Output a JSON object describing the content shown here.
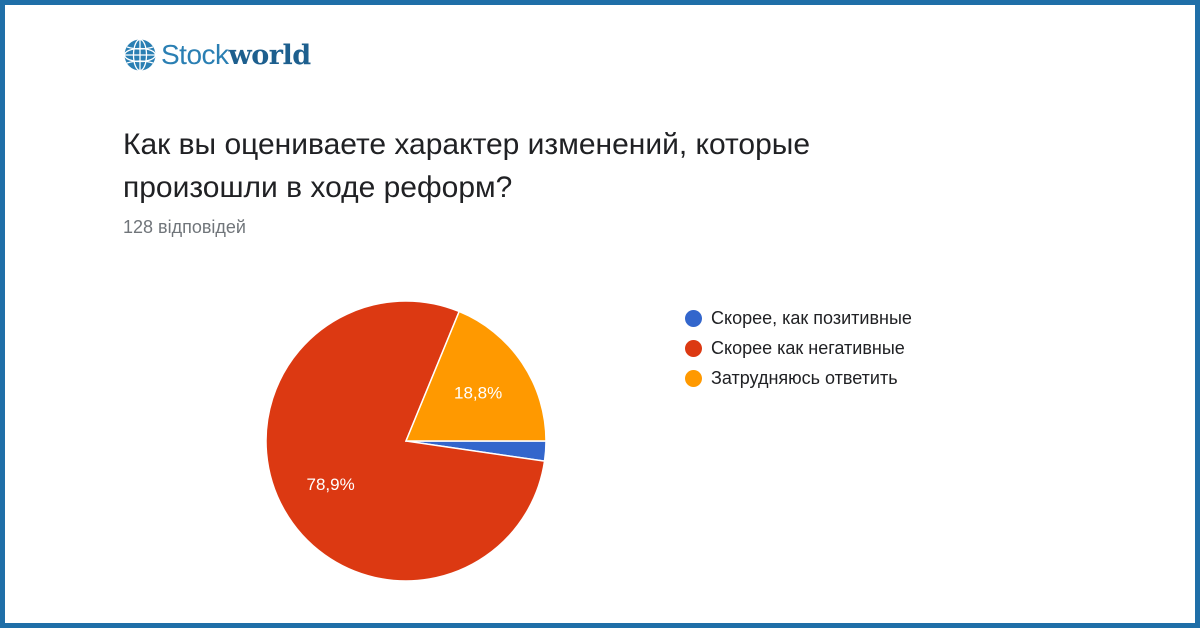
{
  "brand": {
    "name_light": "Stock",
    "name_bold": "world",
    "icon": "globe-icon",
    "color": "#2a7fb3"
  },
  "question": {
    "title": "Как вы оцениваете характер изменений, которые произошли в ходе реформ?",
    "responses": "128 відповідей"
  },
  "chart_data": {
    "type": "pie",
    "categories": [
      "Скорее, как позитивные",
      "Скорее как негативные",
      "Затрудняюсь ответить"
    ],
    "values": [
      2.3,
      78.9,
      18.8
    ],
    "data_labels": [
      "",
      "78,9%",
      "18,8%"
    ],
    "colors": [
      "#3366cc",
      "#dc3912",
      "#ff9900"
    ],
    "legend": "right"
  }
}
